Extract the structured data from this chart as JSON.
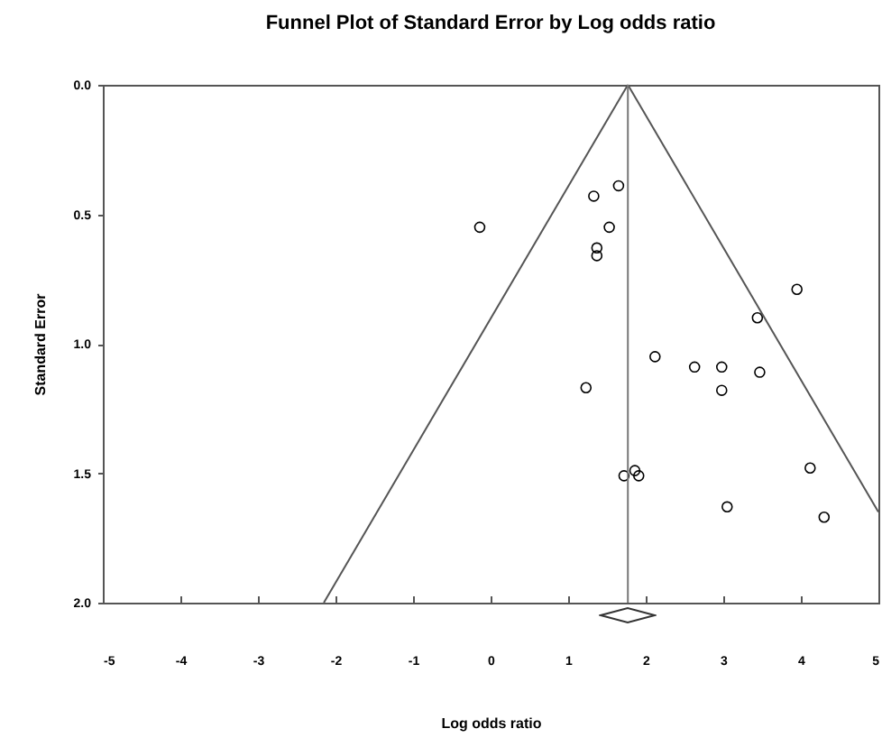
{
  "chart_data": {
    "type": "scatter",
    "title": "Funnel Plot of Standard Error by Log odds ratio",
    "xlabel": "Log odds ratio",
    "ylabel": "Standard Error",
    "xlim": [
      -5,
      5
    ],
    "xticks": [
      -5,
      -4,
      -3,
      -2,
      -1,
      0,
      1,
      2,
      3,
      4,
      5
    ],
    "ylim": [
      2,
      0
    ],
    "yticks": [
      {
        "value": 0,
        "label": "0.0"
      },
      0.5,
      {
        "value": 1,
        "label": "1.0"
      },
      1.5,
      {
        "value": 2,
        "label": "2.0"
      }
    ],
    "grid": false,
    "series": [
      {
        "type": "scatter",
        "marker": "circle",
        "color": "#000000",
        "x": [
          -0.14,
          1.33,
          1.65,
          1.53,
          1.37,
          1.37,
          3.95,
          3.44,
          2.12,
          2.63,
          2.98,
          3.47,
          2.98,
          1.23,
          1.72,
          1.86,
          1.91,
          4.12,
          3.05,
          4.3
        ],
        "values": [
          0.55,
          0.43,
          0.39,
          0.55,
          0.63,
          0.66,
          0.79,
          0.9,
          1.05,
          1.09,
          1.09,
          1.11,
          1.18,
          1.17,
          1.51,
          1.49,
          1.51,
          1.48,
          1.63,
          1.67
        ]
      },
      {
        "type": "line",
        "marker": "none",
        "color": "#555555",
        "x": [
          1.77,
          -2.15
        ],
        "values": [
          0,
          2
        ]
      },
      {
        "type": "line",
        "marker": "none",
        "color": "#555555",
        "x": [
          1.77,
          5
        ],
        "values": [
          0,
          1.65
        ]
      }
    ],
    "ref_lines": [
      {
        "axis": "x",
        "value": 1.77,
        "color": "#777777"
      }
    ]
  }
}
